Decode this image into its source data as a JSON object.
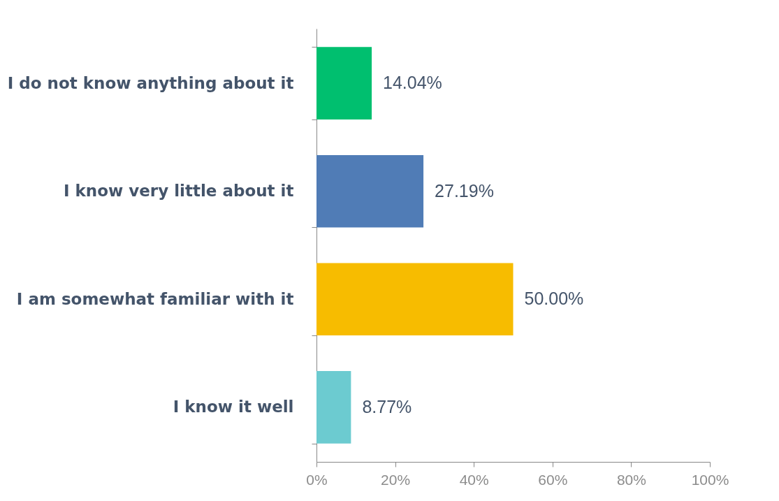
{
  "chart_data": {
    "type": "bar",
    "orientation": "horizontal",
    "categories": [
      "I do not know anything about it",
      "I know very little about it",
      "I am somewhat familiar with it",
      "I know it well"
    ],
    "values": [
      14.04,
      27.19,
      50.0,
      8.77
    ],
    "colors": [
      "#00bf6f",
      "#507cb6",
      "#f7bc00",
      "#6ccbd0"
    ],
    "value_labels": [
      "14.04%",
      "27.19%",
      "50.00%",
      "8.77%"
    ],
    "xlim": [
      0,
      100
    ],
    "xticks": [
      {
        "value": 0,
        "label": "0%"
      },
      {
        "value": 20,
        "label": "20%"
      },
      {
        "value": 40,
        "label": "40%"
      },
      {
        "value": 60,
        "label": "60%"
      },
      {
        "value": 80,
        "label": "80%"
      },
      {
        "value": 100,
        "label": "100%"
      }
    ],
    "grid": false
  }
}
